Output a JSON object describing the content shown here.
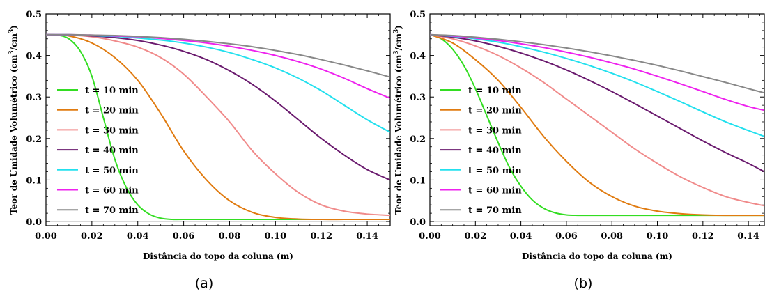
{
  "chart_data": [
    {
      "type": "line",
      "panel_label": "(a)",
      "xlabel": "Distância do topo da coluna (m)",
      "ylabel": "Teor de Umidade Volumétrico (cm³/cm³)",
      "ylabel_parts": {
        "pre": "Teor de Umidade Volumétrico (cm",
        "sup1": "3",
        "mid": "/cm",
        "sup2": "3",
        "post": ")"
      },
      "xlim": [
        0,
        0.15
      ],
      "ylim": [
        -0.01,
        0.5
      ],
      "xticks": [
        "0.00",
        "0.02",
        "0.04",
        "0.06",
        "0.08",
        "0.10",
        "0.12",
        "0.14"
      ],
      "yticks": [
        "0.0",
        "0.1",
        "0.2",
        "0.3",
        "0.4",
        "0.5"
      ],
      "grid": false,
      "legend_position": "left-center",
      "series": [
        {
          "name": "t = 10 min",
          "color": "#33dd22",
          "x": [
            0,
            0.005,
            0.01,
            0.015,
            0.02,
            0.025,
            0.03,
            0.035,
            0.04,
            0.045,
            0.05,
            0.055,
            0.06,
            0.08,
            0.1,
            0.12,
            0.15
          ],
          "y": [
            0.45,
            0.449,
            0.44,
            0.41,
            0.35,
            0.25,
            0.15,
            0.082,
            0.04,
            0.018,
            0.008,
            0.005,
            0.005,
            0.005,
            0.005,
            0.005,
            0.005
          ]
        },
        {
          "name": "t = 20 min",
          "color": "#e07b10",
          "x": [
            0,
            0.01,
            0.02,
            0.03,
            0.04,
            0.05,
            0.06,
            0.07,
            0.08,
            0.09,
            0.1,
            0.11,
            0.12,
            0.13,
            0.14,
            0.15
          ],
          "y": [
            0.45,
            0.447,
            0.43,
            0.395,
            0.34,
            0.26,
            0.17,
            0.1,
            0.05,
            0.022,
            0.01,
            0.006,
            0.005,
            0.005,
            0.005,
            0.005
          ]
        },
        {
          "name": "t = 30 min",
          "color": "#f08a8a",
          "x": [
            0,
            0.01,
            0.02,
            0.03,
            0.04,
            0.05,
            0.06,
            0.07,
            0.08,
            0.09,
            0.1,
            0.11,
            0.12,
            0.13,
            0.14,
            0.15
          ],
          "y": [
            0.45,
            0.449,
            0.445,
            0.435,
            0.42,
            0.395,
            0.355,
            0.3,
            0.24,
            0.17,
            0.115,
            0.07,
            0.04,
            0.025,
            0.018,
            0.015
          ]
        },
        {
          "name": "t = 40 min",
          "color": "#6a1a6e",
          "x": [
            0,
            0.01,
            0.02,
            0.03,
            0.04,
            0.05,
            0.06,
            0.07,
            0.08,
            0.09,
            0.1,
            0.11,
            0.12,
            0.13,
            0.14,
            0.15
          ],
          "y": [
            0.45,
            0.449,
            0.447,
            0.443,
            0.436,
            0.425,
            0.41,
            0.39,
            0.363,
            0.33,
            0.29,
            0.245,
            0.2,
            0.16,
            0.125,
            0.1
          ]
        },
        {
          "name": "t = 50 min",
          "color": "#22e0ee",
          "x": [
            0,
            0.01,
            0.02,
            0.03,
            0.04,
            0.05,
            0.06,
            0.07,
            0.08,
            0.09,
            0.1,
            0.11,
            0.12,
            0.13,
            0.14,
            0.15
          ],
          "y": [
            0.45,
            0.45,
            0.448,
            0.446,
            0.442,
            0.437,
            0.43,
            0.42,
            0.407,
            0.39,
            0.37,
            0.345,
            0.315,
            0.28,
            0.245,
            0.215
          ]
        },
        {
          "name": "t = 60 min",
          "color": "#ee22ee",
          "x": [
            0,
            0.01,
            0.02,
            0.03,
            0.04,
            0.05,
            0.06,
            0.07,
            0.08,
            0.09,
            0.1,
            0.11,
            0.12,
            0.13,
            0.14,
            0.15
          ],
          "y": [
            0.45,
            0.45,
            0.449,
            0.447,
            0.445,
            0.441,
            0.436,
            0.43,
            0.422,
            0.412,
            0.4,
            0.385,
            0.367,
            0.345,
            0.32,
            0.297
          ]
        },
        {
          "name": "t = 70 min",
          "color": "#888888",
          "x": [
            0,
            0.01,
            0.02,
            0.03,
            0.04,
            0.05,
            0.06,
            0.07,
            0.08,
            0.09,
            0.1,
            0.11,
            0.12,
            0.13,
            0.14,
            0.15
          ],
          "y": [
            0.45,
            0.45,
            0.449,
            0.448,
            0.446,
            0.443,
            0.439,
            0.434,
            0.428,
            0.421,
            0.412,
            0.402,
            0.39,
            0.377,
            0.363,
            0.348
          ]
        }
      ]
    },
    {
      "type": "line",
      "panel_label": "(b)",
      "xlabel": "Distância do topo da coluna (m)",
      "ylabel": "Teor de Umidade Volumétrico (cm³/cm³)",
      "ylabel_parts": {
        "pre": "Teor de Umidade Volumétrico (cm",
        "sup1": "3",
        "mid": "/cm",
        "sup2": "3",
        "post": ")"
      },
      "xlim": [
        0,
        0.147
      ],
      "ylim": [
        -0.01,
        0.5
      ],
      "xticks": [
        "0.00",
        "0.02",
        "0.04",
        "0.06",
        "0.08",
        "0.10",
        "0.12",
        "0.14"
      ],
      "yticks": [
        "0.0",
        "0.1",
        "0.2",
        "0.3",
        "0.4",
        "0.5"
      ],
      "grid": false,
      "legend_position": "left-center",
      "series": [
        {
          "name": "t = 10 min",
          "color": "#33dd22",
          "x": [
            0,
            0.005,
            0.01,
            0.015,
            0.02,
            0.025,
            0.03,
            0.035,
            0.04,
            0.045,
            0.05,
            0.055,
            0.06,
            0.065,
            0.07,
            0.1,
            0.147
          ],
          "y": [
            0.45,
            0.44,
            0.415,
            0.375,
            0.32,
            0.255,
            0.19,
            0.13,
            0.085,
            0.052,
            0.032,
            0.021,
            0.016,
            0.015,
            0.015,
            0.015,
            0.015
          ]
        },
        {
          "name": "t = 20 min",
          "color": "#e07b10",
          "x": [
            0,
            0.01,
            0.02,
            0.03,
            0.04,
            0.05,
            0.06,
            0.07,
            0.08,
            0.09,
            0.1,
            0.11,
            0.12,
            0.13,
            0.14,
            0.147
          ],
          "y": [
            0.45,
            0.43,
            0.39,
            0.34,
            0.275,
            0.205,
            0.145,
            0.095,
            0.06,
            0.037,
            0.025,
            0.019,
            0.016,
            0.015,
            0.015,
            0.015
          ]
        },
        {
          "name": "t = 30 min",
          "color": "#f08a8a",
          "x": [
            0,
            0.01,
            0.02,
            0.03,
            0.04,
            0.05,
            0.06,
            0.07,
            0.08,
            0.09,
            0.1,
            0.11,
            0.12,
            0.13,
            0.14,
            0.147
          ],
          "y": [
            0.45,
            0.44,
            0.423,
            0.4,
            0.37,
            0.335,
            0.295,
            0.255,
            0.215,
            0.175,
            0.14,
            0.108,
            0.082,
            0.06,
            0.046,
            0.038
          ]
        },
        {
          "name": "t = 40 min",
          "color": "#6a1a6e",
          "x": [
            0,
            0.01,
            0.02,
            0.03,
            0.04,
            0.05,
            0.06,
            0.07,
            0.08,
            0.09,
            0.1,
            0.11,
            0.12,
            0.13,
            0.14,
            0.147
          ],
          "y": [
            0.45,
            0.444,
            0.435,
            0.422,
            0.406,
            0.387,
            0.365,
            0.34,
            0.313,
            0.284,
            0.254,
            0.224,
            0.194,
            0.166,
            0.14,
            0.12
          ]
        },
        {
          "name": "t = 50 min",
          "color": "#22e0ee",
          "x": [
            0,
            0.01,
            0.02,
            0.03,
            0.04,
            0.05,
            0.06,
            0.07,
            0.08,
            0.09,
            0.1,
            0.11,
            0.12,
            0.13,
            0.14,
            0.147
          ],
          "y": [
            0.45,
            0.446,
            0.44,
            0.432,
            0.421,
            0.408,
            0.393,
            0.376,
            0.357,
            0.336,
            0.313,
            0.289,
            0.264,
            0.24,
            0.219,
            0.205
          ]
        },
        {
          "name": "t = 60 min",
          "color": "#ee22ee",
          "x": [
            0,
            0.01,
            0.02,
            0.03,
            0.04,
            0.05,
            0.06,
            0.07,
            0.08,
            0.09,
            0.1,
            0.11,
            0.12,
            0.13,
            0.14,
            0.147
          ],
          "y": [
            0.45,
            0.447,
            0.442,
            0.436,
            0.428,
            0.419,
            0.408,
            0.396,
            0.382,
            0.367,
            0.35,
            0.332,
            0.313,
            0.294,
            0.277,
            0.268
          ]
        },
        {
          "name": "t = 70 min",
          "color": "#888888",
          "x": [
            0,
            0.01,
            0.02,
            0.03,
            0.04,
            0.05,
            0.06,
            0.07,
            0.08,
            0.09,
            0.1,
            0.11,
            0.12,
            0.13,
            0.14,
            0.147
          ],
          "y": [
            0.45,
            0.448,
            0.444,
            0.439,
            0.433,
            0.426,
            0.418,
            0.409,
            0.399,
            0.388,
            0.376,
            0.363,
            0.349,
            0.335,
            0.32,
            0.31
          ]
        }
      ]
    }
  ]
}
